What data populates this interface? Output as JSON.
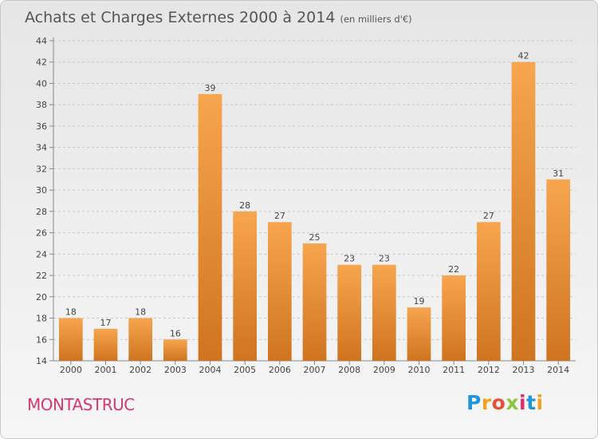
{
  "header": {
    "title": "Achats et Charges Externes 2000 à 2014",
    "subtitle": "(en milliers d'€)"
  },
  "footer": {
    "commune": "MONTASTRUC",
    "brand_letters": [
      "P",
      "r",
      "o",
      "x",
      "i",
      "t",
      "i"
    ]
  },
  "colors": {
    "bar_light": "#f7a54e",
    "bar_dark": "#cf7420",
    "grid": "#c8c8c8",
    "commune": "#d6396a"
  },
  "chart_data": {
    "type": "bar",
    "title": "Achats et Charges Externes 2000 à 2014",
    "subtitle": "(en milliers d'€)",
    "categories": [
      "2000",
      "2001",
      "2002",
      "2003",
      "2004",
      "2005",
      "2006",
      "2007",
      "2008",
      "2009",
      "2010",
      "2011",
      "2012",
      "2013",
      "2014"
    ],
    "values": [
      18,
      17,
      18,
      16,
      39,
      28,
      27,
      25,
      23,
      23,
      19,
      22,
      27,
      42,
      31
    ],
    "ylim": [
      14,
      44
    ],
    "yticks": [
      14,
      16,
      18,
      20,
      22,
      24,
      26,
      28,
      30,
      32,
      34,
      36,
      38,
      40,
      42,
      44
    ],
    "grid": "horizontal dashed",
    "xlabel": "",
    "ylabel": ""
  }
}
